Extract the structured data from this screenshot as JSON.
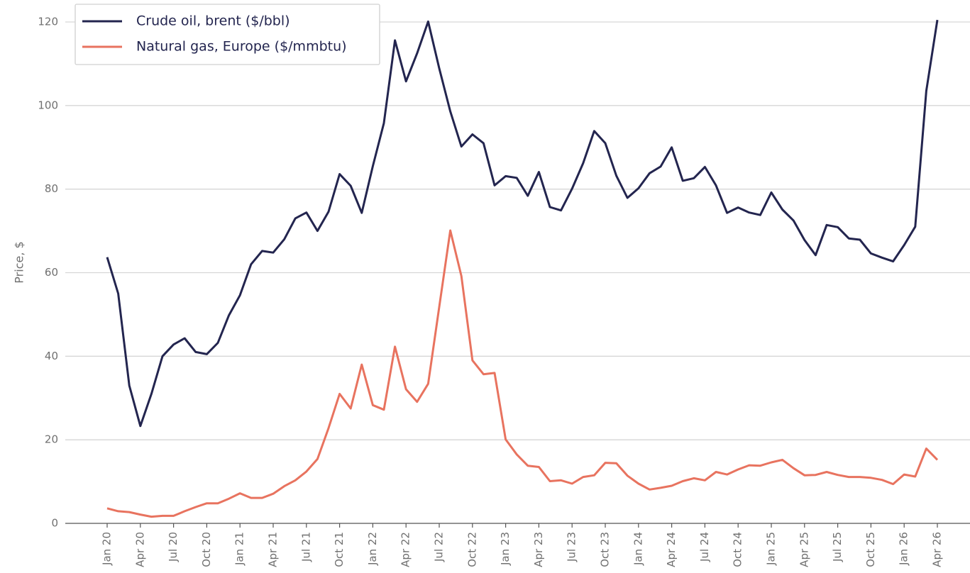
{
  "chart_data": {
    "type": "line",
    "y_label": "Price, $",
    "categories": [
      "Jan 20",
      null,
      null,
      "Apr 20",
      null,
      null,
      "Jul 20",
      null,
      null,
      "Oct 20",
      null,
      null,
      "Jan 21",
      null,
      null,
      "Apr 21",
      null,
      null,
      "Jul 21",
      null,
      null,
      "Oct 21",
      null,
      null,
      "Jan 22",
      null,
      null,
      "Apr 22",
      null,
      null,
      "Jul 22",
      null,
      null,
      "Oct 22",
      null,
      null,
      "Jan 23",
      null,
      null,
      "Apr 23",
      null,
      null,
      "Jul 23",
      null,
      null,
      "Oct 23",
      null,
      null,
      "Jan 24",
      null,
      null,
      "Apr 24",
      null,
      null,
      "Jul 24",
      null,
      null,
      "Oct 24",
      null,
      null,
      "Jan 25",
      null,
      null,
      "Apr 25",
      null,
      null,
      "Jul 25",
      null,
      null,
      "Oct 25",
      null,
      null,
      "Jan 26",
      null,
      null,
      "Apr 26"
    ],
    "series": [
      {
        "name": "Crude oil, brent ($/bbl)",
        "color": "#23254f",
        "values": [
          63.7,
          55,
          33,
          23.3,
          31,
          40,
          42.8,
          44.3,
          41,
          40.5,
          43.2,
          49.8,
          54.6,
          62,
          65.2,
          64.8,
          68,
          73,
          74.4,
          70,
          74.6,
          83.6,
          80.8,
          74.3,
          85.5,
          95.8,
          115.6,
          105.8,
          112.5,
          120.1,
          108.9,
          98.6,
          90.2,
          93.1,
          91,
          80.9,
          83.1,
          82.7,
          78.4,
          84.1,
          75.7,
          74.9,
          80.1,
          86.2,
          93.9,
          91,
          83.2,
          77.9,
          80.2,
          83.8,
          85.4,
          90,
          82,
          82.6,
          85.3,
          80.9,
          74.3,
          75.6,
          74.4,
          73.8,
          79.2,
          75.1,
          72.5,
          67.8,
          64.2,
          71.4,
          70.9,
          68.2,
          67.9,
          64.6,
          63.6,
          62.7,
          66.6,
          71,
          103.5,
          120.5
        ]
      },
      {
        "name": "Natural gas, Europe ($/mmbtu)",
        "color": "#e8735f",
        "values": [
          3.6,
          2.9,
          2.7,
          2.1,
          1.6,
          1.8,
          1.8,
          2.9,
          3.9,
          4.8,
          4.8,
          5.9,
          7.2,
          6.1,
          6.1,
          7.1,
          8.9,
          10.3,
          12.4,
          15.4,
          22.8,
          31,
          27.5,
          38,
          28.3,
          27.2,
          42.3,
          32.1,
          29.1,
          33.4,
          51.8,
          70.1,
          59.2,
          39,
          35.7,
          36,
          20.1,
          16.5,
          13.8,
          13.5,
          10.1,
          10.3,
          9.5,
          11.1,
          11.5,
          14.5,
          14.4,
          11.4,
          9.5,
          8.1,
          8.5,
          9,
          10.1,
          10.8,
          10.3,
          12.3,
          11.7,
          12.9,
          13.9,
          13.8,
          14.6,
          15.2,
          13.2,
          11.5,
          11.6,
          12.3,
          11.6,
          11.1,
          11.1,
          10.9,
          10.4,
          9.4,
          11.7,
          11.2,
          17.9,
          15.2
        ]
      }
    ],
    "ylim": [
      0,
      120
    ],
    "yticks": [
      0,
      20,
      40,
      60,
      80,
      100,
      120
    ],
    "grid": true,
    "legend": "upper left"
  }
}
